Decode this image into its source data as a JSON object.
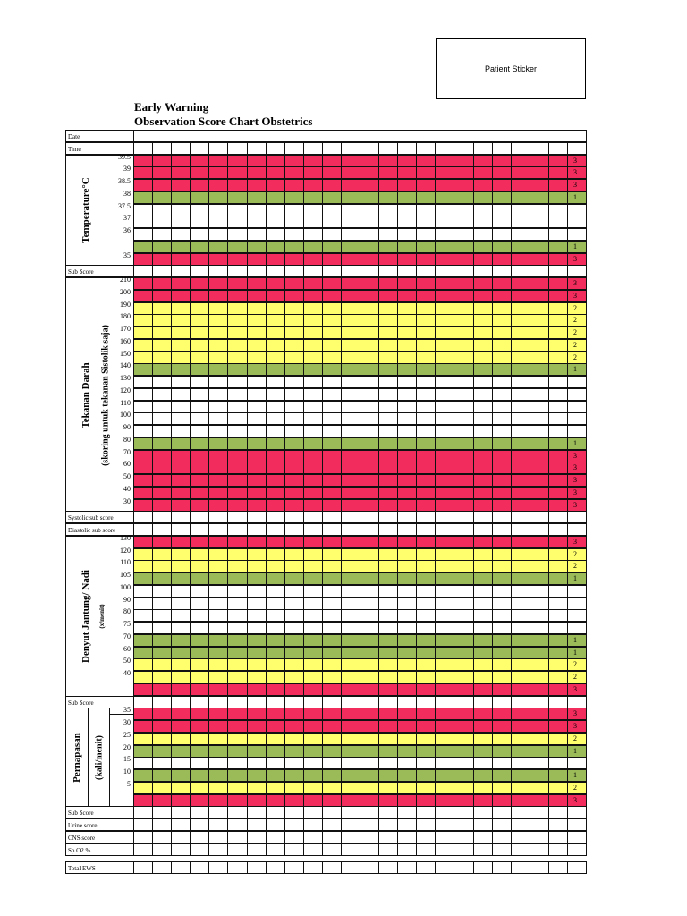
{
  "sticker": "Patient Sticker",
  "title": [
    "Early  Warning",
    "Observation Score Chart Obstetrics"
  ],
  "colors": {
    "r": "#f22d5d",
    "y": "#ffff6e",
    "g": "#9bbb59",
    "w": "#ffffff"
  },
  "time_columns": 23,
  "blocks": [
    {
      "type": "date",
      "label": "Date"
    },
    {
      "type": "row",
      "label": "Time"
    },
    {
      "type": "group",
      "title": "Temperature°C",
      "rows": [
        {
          "label": "39.5",
          "c": "r",
          "score": "3"
        },
        {
          "label": "39",
          "c": "r",
          "score": "3"
        },
        {
          "label": "38.5",
          "c": "r",
          "score": "3"
        },
        {
          "label": "38",
          "c": "g",
          "score": "1"
        },
        {
          "label": "37.5",
          "c": "w",
          "score": ""
        },
        {
          "label": "37",
          "c": "w",
          "score": ""
        },
        {
          "label": "36",
          "c": "w",
          "score": ""
        },
        {
          "label": "",
          "c": "g",
          "score": "1"
        },
        {
          "label": "35",
          "c": "r",
          "score": "3"
        }
      ]
    },
    {
      "type": "row",
      "label": "Sub Score"
    },
    {
      "type": "group",
      "title": "Tekanan Darah",
      "subtitle": "(skoring untuk tekanan Sistolik saja)",
      "rows": [
        {
          "label": "210",
          "c": "r",
          "score": "3"
        },
        {
          "label": "200",
          "c": "r",
          "score": "3"
        },
        {
          "label": "190",
          "c": "y",
          "score": "2"
        },
        {
          "label": "180",
          "c": "y",
          "score": "2"
        },
        {
          "label": "170",
          "c": "y",
          "score": "2"
        },
        {
          "label": "160",
          "c": "y",
          "score": "2"
        },
        {
          "label": "150",
          "c": "y",
          "score": "2"
        },
        {
          "label": "140",
          "c": "g",
          "score": "1"
        },
        {
          "label": "130",
          "c": "w",
          "score": ""
        },
        {
          "label": "120",
          "c": "w",
          "score": ""
        },
        {
          "label": "110",
          "c": "w",
          "score": ""
        },
        {
          "label": "100",
          "c": "w",
          "score": ""
        },
        {
          "label": "90",
          "c": "w",
          "score": ""
        },
        {
          "label": "80",
          "c": "g",
          "score": "1"
        },
        {
          "label": "70",
          "c": "r",
          "score": "3"
        },
        {
          "label": "60",
          "c": "r",
          "score": "3"
        },
        {
          "label": "50",
          "c": "r",
          "score": "3"
        },
        {
          "label": "40",
          "c": "r",
          "score": "3"
        },
        {
          "label": "30",
          "c": "r",
          "score": "3"
        }
      ]
    },
    {
      "type": "row",
      "label": "Systolic sub score"
    },
    {
      "type": "row",
      "label": "Diastolic sub score"
    },
    {
      "type": "group",
      "title": "Denyut Jantung/ Nadi",
      "subtitle": "(x/menit)",
      "rows": [
        {
          "label": "130",
          "c": "r",
          "score": "3"
        },
        {
          "label": "120",
          "c": "y",
          "score": "2"
        },
        {
          "label": "110",
          "c": "y",
          "score": "2"
        },
        {
          "label": "105",
          "c": "g",
          "score": "1"
        },
        {
          "label": "100",
          "c": "w",
          "score": ""
        },
        {
          "label": "90",
          "c": "w",
          "score": ""
        },
        {
          "label": "80",
          "c": "w",
          "score": ""
        },
        {
          "label": "75",
          "c": "w",
          "score": ""
        },
        {
          "label": "70",
          "c": "g",
          "score": "1"
        },
        {
          "label": "60",
          "c": "g",
          "score": "1"
        },
        {
          "label": "50",
          "c": "y",
          "score": "2"
        },
        {
          "label": "40",
          "c": "y",
          "score": "2"
        },
        {
          "label": "",
          "c": "r",
          "score": "3"
        }
      ]
    },
    {
      "type": "row",
      "label": "Sub Score"
    },
    {
      "type": "group",
      "split": true,
      "title": "Pernapasan",
      "subtitle": "(kali/menit)",
      "rows": [
        {
          "label": "35",
          "c": "r",
          "score": "3"
        },
        {
          "label": "30",
          "c": "r",
          "score": "3"
        },
        {
          "label": "25",
          "c": "y",
          "score": "2"
        },
        {
          "label": "20",
          "c": "g",
          "score": "1"
        },
        {
          "label": "15",
          "c": "w",
          "score": ""
        },
        {
          "label": "10",
          "c": "g",
          "score": "1"
        },
        {
          "label": "5",
          "c": "y",
          "score": "2"
        },
        {
          "label": "",
          "c": "r",
          "score": "3"
        }
      ]
    },
    {
      "type": "row",
      "label": "Sub Score"
    },
    {
      "type": "row",
      "label": "Urine score"
    },
    {
      "type": "row",
      "label": "CNS score"
    },
    {
      "type": "row",
      "label": "Sp O2 %"
    },
    {
      "type": "gap"
    },
    {
      "type": "row",
      "label": "Total EWS"
    }
  ]
}
